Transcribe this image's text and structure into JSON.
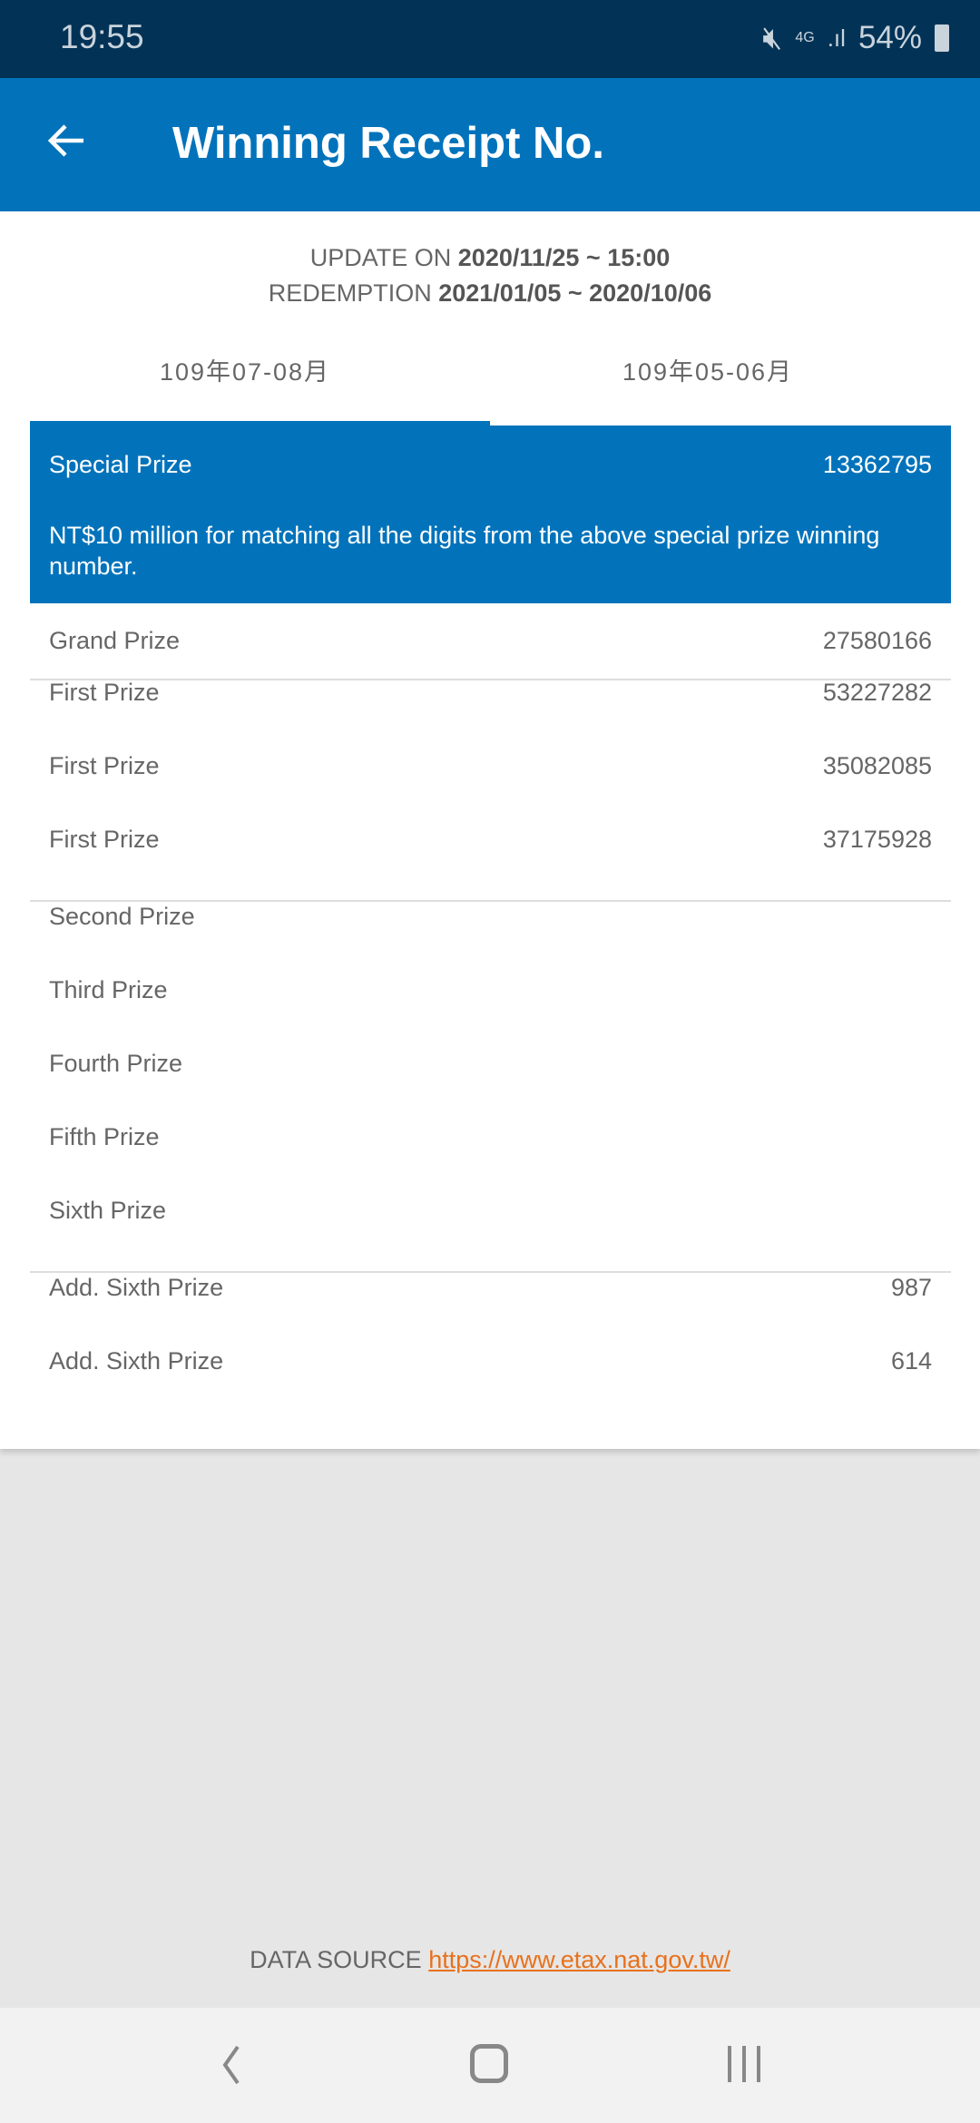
{
  "status_bar": {
    "time": "19:55",
    "network": "4G",
    "battery": "54%"
  },
  "app_bar": {
    "title": "Winning Receipt No."
  },
  "info": {
    "update_label": "UPDATE ON",
    "update_value": "2020/11/25 ~ 15:00",
    "redemption_label": "REDEMPTION",
    "redemption_value": "2021/01/05 ~ 2020/10/06"
  },
  "tabs": [
    {
      "label": "109年07-08月",
      "selected": true
    },
    {
      "label": "109年05-06月",
      "selected": false
    }
  ],
  "special": {
    "label": "Special Prize",
    "number": "13362795",
    "description": "NT$10 million for matching all the digits from the above special prize winning number."
  },
  "prizes": [
    {
      "label": "Grand Prize",
      "number": "27580166"
    },
    {
      "label": "First Prize",
      "number": "53227282"
    },
    {
      "label": "First Prize",
      "number": "35082085"
    },
    {
      "label": "First Prize",
      "number": "37175928"
    },
    {
      "label": "Second Prize",
      "number": ""
    },
    {
      "label": "Third Prize",
      "number": ""
    },
    {
      "label": "Fourth Prize",
      "number": ""
    },
    {
      "label": "Fifth Prize",
      "number": ""
    },
    {
      "label": "Sixth Prize",
      "number": ""
    },
    {
      "label": "Add. Sixth Prize",
      "number": "987"
    },
    {
      "label": "Add. Sixth Prize",
      "number": "614"
    }
  ],
  "footer": {
    "label": "DATA SOURCE",
    "link": "https://www.etax.nat.gov.tw/"
  },
  "colors": {
    "primary": "#0273bb",
    "status_bar": "#023356",
    "link": "#e8711c"
  }
}
